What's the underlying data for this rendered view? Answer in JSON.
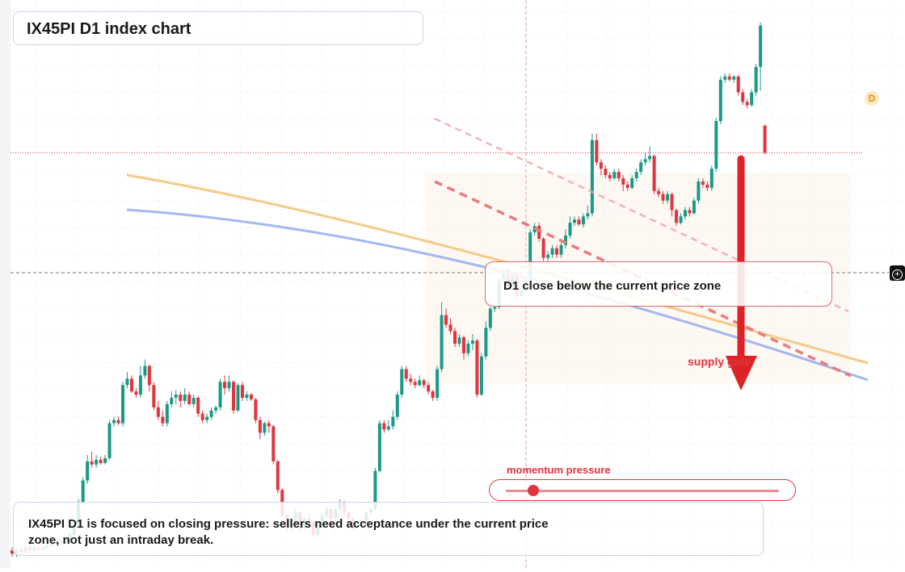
{
  "title": "IX45PI D1 index chart",
  "callout": "D1 close below the current price zone",
  "supply_label": "supply gate",
  "momentum": {
    "label": "momentum pressure",
    "level": 0.1
  },
  "note": "IX45PI D1 is focused on closing pressure: sellers need acceptance under the current price zone, not just an intraday break.",
  "badge": "D",
  "colors": {
    "up": "#1a9a86",
    "down": "#e0353f",
    "orange": "#f5c47a",
    "blue": "#9db4f0",
    "accent": "#e0353f"
  },
  "chart_data": {
    "type": "candlestick",
    "grid": true,
    "candles": [
      [
        100,
        99,
        101,
        98
      ],
      [
        99,
        100,
        101,
        98
      ],
      [
        100,
        99.5,
        101,
        98.5
      ],
      [
        99.5,
        101,
        102,
        99
      ],
      [
        101,
        100,
        102,
        99
      ],
      [
        100,
        101,
        101.8,
        99.2
      ],
      [
        101,
        100.5,
        102,
        100
      ],
      [
        100.5,
        101,
        101.5,
        100
      ],
      [
        101,
        101.5,
        102.5,
        100.5
      ],
      [
        101.5,
        102,
        103,
        101
      ],
      [
        102,
        103,
        103.5,
        101.5
      ],
      [
        103,
        102.5,
        103.5,
        102
      ],
      [
        102.5,
        103,
        104,
        102
      ],
      [
        103,
        105,
        106,
        102.5
      ],
      [
        105,
        108,
        108.5,
        104.5
      ],
      [
        108,
        115,
        116,
        107.5
      ],
      [
        115,
        122,
        123,
        114
      ],
      [
        122,
        128,
        130,
        121
      ],
      [
        128,
        127,
        131,
        126
      ],
      [
        127,
        128.5,
        130,
        126
      ],
      [
        128.5,
        127.5,
        129.5,
        127
      ],
      [
        127.5,
        129,
        130,
        127
      ],
      [
        129,
        140,
        141,
        128.5
      ],
      [
        140,
        141,
        142,
        139
      ],
      [
        141,
        140,
        142,
        139.5
      ],
      [
        140,
        152,
        153,
        139
      ],
      [
        152,
        154,
        156,
        151
      ],
      [
        154,
        150,
        155,
        149.5
      ],
      [
        150,
        149,
        151,
        148
      ],
      [
        149,
        155,
        158,
        148
      ],
      [
        155,
        158,
        160,
        154
      ],
      [
        158,
        152,
        158.5,
        150
      ],
      [
        152,
        145,
        153,
        144
      ],
      [
        145,
        142,
        147,
        141
      ],
      [
        142,
        140,
        144,
        139
      ],
      [
        140,
        146,
        147,
        139
      ],
      [
        146,
        148,
        150,
        145
      ],
      [
        148,
        149,
        150.5,
        146
      ],
      [
        149,
        147,
        150,
        145
      ],
      [
        147,
        149,
        151,
        146
      ],
      [
        149,
        146,
        150,
        145.5
      ],
      [
        146,
        148,
        149,
        145
      ],
      [
        148,
        143,
        148.5,
        142
      ],
      [
        143,
        141,
        144,
        140
      ],
      [
        141,
        142,
        143,
        140
      ],
      [
        142,
        144,
        145,
        141
      ],
      [
        144,
        145,
        145.5,
        143
      ],
      [
        145,
        153,
        154,
        144
      ],
      [
        153,
        151,
        155,
        149
      ],
      [
        151,
        153,
        155,
        150
      ],
      [
        153,
        144,
        153.5,
        143
      ],
      [
        144,
        152,
        152.5,
        143.5
      ],
      [
        152,
        148,
        153,
        147
      ],
      [
        148,
        149,
        150,
        147
      ],
      [
        149,
        147.5,
        149.5,
        147
      ],
      [
        147.5,
        141,
        148,
        140
      ],
      [
        141,
        137,
        142,
        135
      ],
      [
        137,
        140,
        140.5,
        136
      ],
      [
        140,
        139,
        141,
        137
      ],
      [
        139,
        128,
        139.5,
        127
      ],
      [
        128,
        119,
        128.5,
        118
      ],
      [
        119,
        111,
        119.5,
        110
      ],
      [
        111,
        107,
        111.5,
        106
      ],
      [
        107,
        109,
        110,
        106
      ],
      [
        109,
        112,
        113,
        108
      ],
      [
        112,
        107,
        112.5,
        106
      ],
      [
        107,
        110,
        111,
        106.5
      ],
      [
        110,
        109,
        112,
        107
      ],
      [
        109,
        105,
        109.5,
        104
      ],
      [
        105,
        108,
        109,
        104.5
      ],
      [
        108,
        111,
        112,
        107
      ],
      [
        111,
        113,
        114,
        110
      ],
      [
        113,
        110,
        114,
        109
      ],
      [
        110,
        113,
        114,
        109.5
      ],
      [
        113,
        115,
        116,
        112
      ],
      [
        115,
        112,
        115.5,
        111
      ],
      [
        112,
        110,
        112.5,
        109
      ],
      [
        110,
        107,
        110.5,
        106
      ],
      [
        107,
        109,
        109.5,
        106.5
      ],
      [
        109,
        108,
        111,
        107
      ],
      [
        108,
        112,
        112.5,
        107.5
      ],
      [
        112,
        113,
        114,
        111
      ],
      [
        113,
        125,
        126,
        112.5
      ],
      [
        125,
        140,
        141,
        124.5
      ],
      [
        140,
        138,
        141,
        137
      ],
      [
        138,
        139,
        141,
        137.5
      ],
      [
        139,
        142,
        144,
        138
      ],
      [
        142,
        149,
        150,
        141
      ],
      [
        149,
        157,
        158,
        148
      ],
      [
        157,
        154,
        158,
        153
      ],
      [
        154,
        153,
        155.5,
        152
      ],
      [
        153,
        152,
        154,
        151
      ],
      [
        152,
        153.5,
        155,
        151.5
      ],
      [
        153.5,
        152,
        154,
        151
      ],
      [
        152,
        150,
        153,
        149
      ],
      [
        150,
        148,
        150.5,
        147
      ],
      [
        148,
        157,
        158,
        147
      ],
      [
        157,
        174,
        178,
        156
      ],
      [
        174,
        171,
        176,
        170
      ],
      [
        171,
        169,
        173,
        168
      ],
      [
        169,
        165,
        170,
        164
      ],
      [
        165,
        167,
        168,
        164
      ],
      [
        167,
        162,
        167.5,
        160
      ],
      [
        162,
        165,
        166,
        161
      ],
      [
        165,
        166,
        168,
        163
      ],
      [
        166,
        149,
        166.5,
        148
      ],
      [
        149,
        161,
        162,
        148.5
      ],
      [
        161,
        170,
        172,
        160
      ],
      [
        170,
        176,
        176.5,
        169
      ],
      [
        176,
        176.5,
        177,
        175
      ],
      [
        176.5,
        185,
        186,
        176
      ],
      [
        185,
        188,
        189,
        184
      ],
      [
        188,
        183,
        188.5,
        182
      ],
      [
        183,
        187,
        188,
        182
      ],
      [
        187,
        180,
        187.5,
        179
      ],
      [
        180,
        182,
        183,
        179.5
      ],
      [
        182,
        184,
        186,
        181
      ],
      [
        184,
        200,
        201,
        183
      ],
      [
        200,
        202,
        203,
        199
      ],
      [
        202,
        198,
        203,
        197
      ],
      [
        198,
        192,
        198.5,
        191
      ],
      [
        192,
        193,
        194,
        191
      ],
      [
        193,
        195,
        196,
        192
      ],
      [
        195,
        193,
        196,
        192
      ],
      [
        193,
        196,
        197,
        192
      ],
      [
        196,
        199,
        201,
        195
      ],
      [
        199,
        203,
        205,
        198
      ],
      [
        203,
        204,
        205,
        202
      ],
      [
        204,
        202.5,
        205,
        202
      ],
      [
        202.5,
        205,
        206,
        201.5
      ],
      [
        205,
        206,
        208.5,
        204
      ],
      [
        206,
        229,
        231,
        205
      ],
      [
        229,
        222,
        231,
        221
      ],
      [
        222,
        220,
        223,
        218
      ],
      [
        220,
        218,
        221,
        217
      ],
      [
        218,
        217,
        219,
        216
      ],
      [
        217,
        219,
        220,
        216.5
      ],
      [
        219,
        217,
        220,
        216
      ],
      [
        217,
        215,
        218,
        213
      ],
      [
        215,
        214,
        216,
        213
      ],
      [
        214,
        217,
        218,
        213.5
      ],
      [
        217,
        219,
        220,
        216
      ],
      [
        219,
        222,
        223,
        218
      ],
      [
        222,
        223,
        225,
        221
      ],
      [
        223,
        224,
        227,
        222
      ],
      [
        224,
        213,
        224.5,
        212
      ],
      [
        213,
        212,
        214,
        211
      ],
      [
        212,
        210,
        213,
        209
      ],
      [
        210,
        212,
        213,
        209
      ],
      [
        212,
        207,
        212.5,
        205
      ],
      [
        207,
        203,
        207.5,
        202
      ],
      [
        203,
        205,
        206,
        202.5
      ],
      [
        205,
        207,
        208,
        204
      ],
      [
        207,
        206,
        208,
        205
      ],
      [
        206,
        210,
        211,
        205.5
      ],
      [
        210,
        216,
        217,
        209
      ],
      [
        216,
        215,
        217,
        214
      ],
      [
        215,
        214,
        216,
        213
      ],
      [
        214,
        220,
        221,
        213
      ],
      [
        220,
        235,
        236,
        219
      ],
      [
        235,
        248,
        249,
        234
      ],
      [
        248,
        249,
        250,
        247
      ],
      [
        249,
        248,
        250,
        247.5
      ],
      [
        248,
        249,
        249.5,
        247
      ],
      [
        249,
        244,
        249.5,
        243
      ],
      [
        244,
        241,
        245,
        240
      ],
      [
        241,
        240,
        242,
        239
      ],
      [
        240,
        244,
        245,
        239.5
      ],
      [
        244,
        252,
        253,
        243
      ],
      [
        252,
        265,
        266,
        244.5
      ],
      [
        233.5,
        225,
        234,
        224.5
      ]
    ],
    "ylim": [
      95,
      270
    ],
    "reference_price": 225
  }
}
